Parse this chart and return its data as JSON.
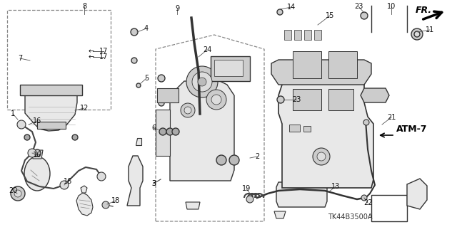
{
  "bg_color": "#ffffff",
  "diagram_code": "TK44B3500A",
  "atm_label": "ATM-7",
  "fr_label": "FR.",
  "line_color": "#333333",
  "light_fill": "#e8e8e8",
  "mid_fill": "#d0d0d0"
}
